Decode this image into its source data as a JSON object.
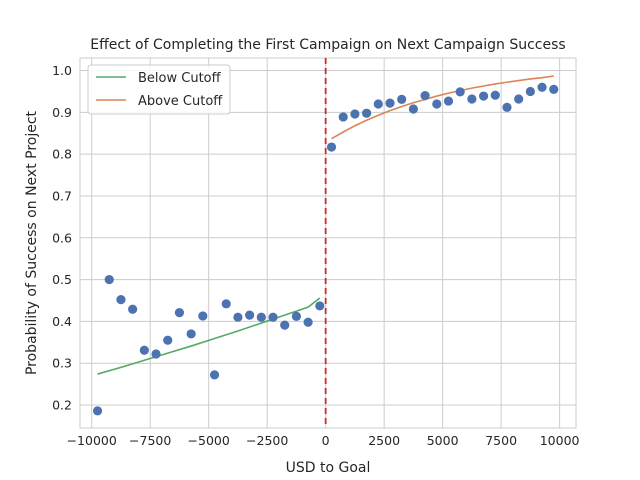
{
  "chart_data": {
    "type": "scatter",
    "title": "Effect of Completing the First Campaign on Next Campaign Success",
    "xlabel": "USD to Goal",
    "ylabel": "Probability of Success on Next Project",
    "xlim": [
      -10500,
      10700
    ],
    "ylim": [
      0.145,
      1.03
    ],
    "xticks": [
      -10000,
      -7500,
      -5000,
      -2500,
      0,
      2500,
      5000,
      7500,
      10000
    ],
    "xtick_labels": [
      "−10000",
      "−7500",
      "−5000",
      "−2500",
      "0",
      "2500",
      "5000",
      "7500",
      "10000"
    ],
    "yticks": [
      0.2,
      0.3,
      0.4,
      0.5,
      0.6,
      0.7,
      0.8,
      0.9,
      1.0
    ],
    "ytick_labels": [
      "0.2",
      "0.3",
      "0.4",
      "0.5",
      "0.6",
      "0.7",
      "0.8",
      "0.9",
      "1.0"
    ],
    "grid": true,
    "legend_position": "top-left",
    "cutoff": {
      "x": 0,
      "color": "#d62728"
    },
    "points": {
      "color": "#4c72b0",
      "x": [
        -9750,
        -9250,
        -8750,
        -8250,
        -7750,
        -7250,
        -6750,
        -6250,
        -5750,
        -5250,
        -4750,
        -4250,
        -3750,
        -3250,
        -2750,
        -2250,
        -1750,
        -1250,
        -750,
        -250,
        250,
        750,
        1250,
        1750,
        2250,
        2750,
        3250,
        3750,
        4250,
        4750,
        5250,
        5750,
        6250,
        6750,
        7250,
        7750,
        8250,
        8750,
        9250,
        9750
      ],
      "y": [
        0.186,
        0.5,
        0.452,
        0.429,
        0.331,
        0.322,
        0.355,
        0.421,
        0.37,
        0.413,
        0.272,
        0.442,
        0.41,
        0.415,
        0.41,
        0.41,
        0.391,
        0.412,
        0.398,
        0.437,
        0.817,
        0.889,
        0.896,
        0.898,
        0.92,
        0.922,
        0.931,
        0.908,
        0.94,
        0.92,
        0.927,
        0.949,
        0.932,
        0.939,
        0.941,
        0.912,
        0.932,
        0.95,
        0.96,
        0.955
      ]
    },
    "series": [
      {
        "name": "Below Cutoff",
        "color": "#55a868",
        "x": [
          -9750,
          -8750,
          -7750,
          -6750,
          -5750,
          -4750,
          -3750,
          -2750,
          -1750,
          -750,
          -250
        ],
        "y": [
          0.274,
          0.29,
          0.307,
          0.324,
          0.341,
          0.359,
          0.377,
          0.396,
          0.415,
          0.434,
          0.456
        ]
      },
      {
        "name": "Above Cutoff",
        "color": "#dd8452",
        "x": [
          250,
          750,
          1250,
          1750,
          2250,
          2750,
          3250,
          3750,
          4250,
          4750,
          5250,
          5750,
          6250,
          6750,
          7250,
          7750,
          8250,
          8750,
          9250,
          9750
        ],
        "y": [
          0.837,
          0.853,
          0.868,
          0.881,
          0.893,
          0.904,
          0.914,
          0.923,
          0.931,
          0.939,
          0.946,
          0.952,
          0.958,
          0.963,
          0.968,
          0.972,
          0.976,
          0.98,
          0.983,
          0.987
        ]
      }
    ]
  }
}
